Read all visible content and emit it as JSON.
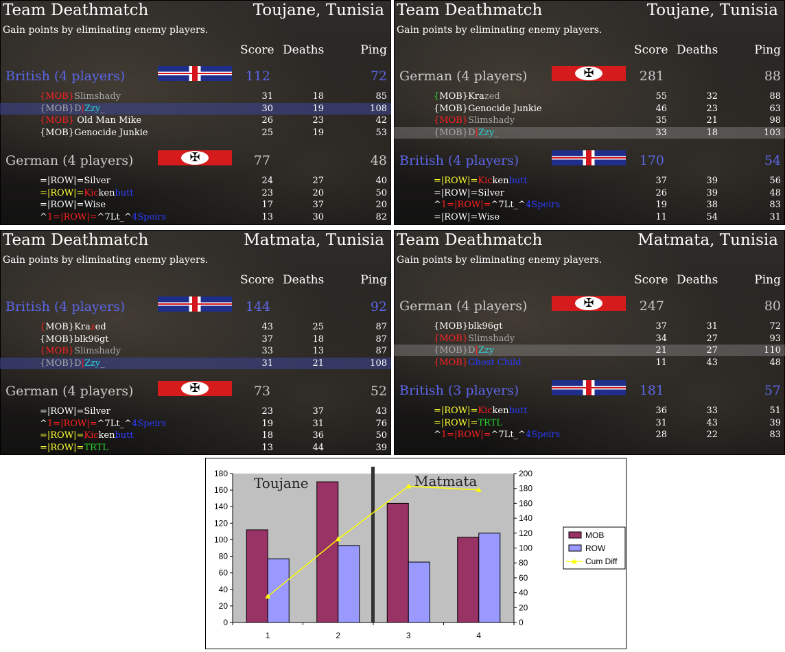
{
  "panels": [
    {
      "mode": "Team Deathmatch",
      "map": "Toujane, Tunisia",
      "description": "Gain points by eliminating enemy players.",
      "headers": {
        "score": "Score",
        "deaths": "Deaths",
        "ping": "Ping"
      },
      "teams": [
        {
          "name": "British (4 players)",
          "faction": "british",
          "score": "112",
          "ping": "72",
          "players": [
            {
              "segments": [
                {
                  "t": "{MOB}",
                  "c": "cr"
                },
                {
                  "t": "Slimshady",
                  "c": "cgr"
                }
              ],
              "score": "31",
              "deaths": "18",
              "ping": "85"
            },
            {
              "segments": [
                {
                  "t": "{MOB}D",
                  "c": "cgr"
                },
                {
                  "t": "|",
                  "c": "cr"
                },
                {
                  "t": "Zzy",
                  "c": "cc"
                },
                {
                  "t": "_",
                  "c": "cgr"
                }
              ],
              "score": "30",
              "deaths": "19",
              "ping": "108",
              "hl": "hl"
            },
            {
              "segments": [
                {
                  "t": "{MOB}",
                  "c": "cr"
                },
                {
                  "t": " Old Man Mike",
                  "c": "cw"
                }
              ],
              "score": "26",
              "deaths": "23",
              "ping": "42"
            },
            {
              "segments": [
                {
                  "t": "{MOB}Genocide Junkie",
                  "c": "cw"
                }
              ],
              "score": "25",
              "deaths": "19",
              "ping": "53"
            }
          ]
        },
        {
          "name": "German (4 players)",
          "faction": "german",
          "score": "77",
          "ping": "48",
          "players": [
            {
              "segments": [
                {
                  "t": "=|ROW|=Silver",
                  "c": "cw"
                }
              ],
              "score": "24",
              "deaths": "27",
              "ping": "40"
            },
            {
              "segments": [
                {
                  "t": "=|ROW|=",
                  "c": "cy"
                },
                {
                  "t": "Kic",
                  "c": "cr"
                },
                {
                  "t": "ken",
                  "c": "cw"
                },
                {
                  "t": "butt",
                  "c": "cb"
                }
              ],
              "score": "23",
              "deaths": "20",
              "ping": "50"
            },
            {
              "segments": [
                {
                  "t": "=|ROW|=Wise",
                  "c": "cw"
                }
              ],
              "score": "17",
              "deaths": "37",
              "ping": "20"
            },
            {
              "segments": [
                {
                  "t": "^",
                  "c": "cw"
                },
                {
                  "t": "1=|ROW|=",
                  "c": "cr"
                },
                {
                  "t": "^7Lt_^",
                  "c": "cw"
                },
                {
                  "t": "4Speirs",
                  "c": "cb"
                }
              ],
              "score": "13",
              "deaths": "30",
              "ping": "82"
            }
          ]
        }
      ]
    },
    {
      "mode": "Team Deathmatch",
      "map": "Toujane, Tunisia",
      "description": "Gain points by eliminating enemy players.",
      "headers": {
        "score": "Score",
        "deaths": "Deaths",
        "ping": "Ping"
      },
      "teams": [
        {
          "name": "German (4 players)",
          "faction": "german",
          "score": "281",
          "ping": "88",
          "players": [
            {
              "segments": [
                {
                  "t": "{",
                  "c": "cg"
                },
                {
                  "t": "MOB}",
                  "c": "cw"
                },
                {
                  "t": "Kra",
                  "c": "cw"
                },
                {
                  "t": "zed",
                  "c": "cgr"
                }
              ],
              "score": "55",
              "deaths": "32",
              "ping": "88"
            },
            {
              "segments": [
                {
                  "t": "{MOB}Genocide Junkie",
                  "c": "cw"
                }
              ],
              "score": "46",
              "deaths": "23",
              "ping": "63"
            },
            {
              "segments": [
                {
                  "t": "{MOB}",
                  "c": "cr"
                },
                {
                  "t": "Slimshady",
                  "c": "cgr"
                }
              ],
              "score": "35",
              "deaths": "21",
              "ping": "98"
            },
            {
              "segments": [
                {
                  "t": "{MOB}D",
                  "c": "cgr"
                },
                {
                  "t": "|",
                  "c": "cr"
                },
                {
                  "t": "Zzy",
                  "c": "cc"
                },
                {
                  "t": "_",
                  "c": "cgr"
                }
              ],
              "score": "33",
              "deaths": "18",
              "ping": "103",
              "hl": "hl2"
            }
          ]
        },
        {
          "name": "British (4 players)",
          "faction": "british",
          "score": "170",
          "ping": "54",
          "players": [
            {
              "segments": [
                {
                  "t": "=|ROW|=",
                  "c": "cy"
                },
                {
                  "t": "Kic",
                  "c": "cr"
                },
                {
                  "t": "ken",
                  "c": "cw"
                },
                {
                  "t": "butt",
                  "c": "cb"
                }
              ],
              "score": "37",
              "deaths": "39",
              "ping": "56"
            },
            {
              "segments": [
                {
                  "t": "=|ROW|=Silver",
                  "c": "cw"
                }
              ],
              "score": "26",
              "deaths": "39",
              "ping": "48"
            },
            {
              "segments": [
                {
                  "t": "^",
                  "c": "cw"
                },
                {
                  "t": "1=|ROW|=",
                  "c": "cr"
                },
                {
                  "t": "^7Lt_^",
                  "c": "cw"
                },
                {
                  "t": "4Speirs",
                  "c": "cb"
                }
              ],
              "score": "19",
              "deaths": "38",
              "ping": "83"
            },
            {
              "segments": [
                {
                  "t": "=|ROW|=Wise",
                  "c": "cw"
                }
              ],
              "score": "11",
              "deaths": "54",
              "ping": "31"
            }
          ]
        }
      ]
    },
    {
      "mode": "Team Deathmatch",
      "map": "Matmata, Tunisia",
      "description": "Gain points by eliminating enemy players.",
      "headers": {
        "score": "Score",
        "deaths": "Deaths",
        "ping": "Ping"
      },
      "teams": [
        {
          "name": "British (4 players)",
          "faction": "british",
          "score": "144",
          "ping": "92",
          "players": [
            {
              "segments": [
                {
                  "t": "{",
                  "c": "cr"
                },
                {
                  "t": "MOB}",
                  "c": "cw"
                },
                {
                  "t": "Kra",
                  "c": "cw"
                },
                {
                  "t": "z",
                  "c": "cr"
                },
                {
                  "t": "ed",
                  "c": "cw"
                }
              ],
              "score": "43",
              "deaths": "25",
              "ping": "87"
            },
            {
              "segments": [
                {
                  "t": "{MOB}blk96gt",
                  "c": "cw"
                }
              ],
              "score": "37",
              "deaths": "18",
              "ping": "87"
            },
            {
              "segments": [
                {
                  "t": "{MOB}",
                  "c": "cr"
                },
                {
                  "t": "Slimshady",
                  "c": "cgr"
                }
              ],
              "score": "33",
              "deaths": "13",
              "ping": "87"
            },
            {
              "segments": [
                {
                  "t": "{MOB}D",
                  "c": "cgr"
                },
                {
                  "t": "|",
                  "c": "cr"
                },
                {
                  "t": "Zzy",
                  "c": "cc"
                },
                {
                  "t": "_",
                  "c": "cgr"
                }
              ],
              "score": "31",
              "deaths": "21",
              "ping": "108",
              "hl": "hl"
            }
          ]
        },
        {
          "name": "German (4 players)",
          "faction": "german",
          "score": "73",
          "ping": "52",
          "players": [
            {
              "segments": [
                {
                  "t": "=|ROW|=Silver",
                  "c": "cw"
                }
              ],
              "score": "23",
              "deaths": "37",
              "ping": "43"
            },
            {
              "segments": [
                {
                  "t": "^",
                  "c": "cw"
                },
                {
                  "t": "1=|ROW|=",
                  "c": "cr"
                },
                {
                  "t": "^7Lt_^",
                  "c": "cw"
                },
                {
                  "t": "4Speirs",
                  "c": "cb"
                }
              ],
              "score": "19",
              "deaths": "31",
              "ping": "76"
            },
            {
              "segments": [
                {
                  "t": "=|ROW|=",
                  "c": "cy"
                },
                {
                  "t": "Kic",
                  "c": "cr"
                },
                {
                  "t": "ken",
                  "c": "cw"
                },
                {
                  "t": "butt",
                  "c": "cb"
                }
              ],
              "score": "18",
              "deaths": "36",
              "ping": "50"
            },
            {
              "segments": [
                {
                  "t": "=|ROW|=",
                  "c": "cy"
                },
                {
                  "t": "TRTL",
                  "c": "cg"
                }
              ],
              "score": "13",
              "deaths": "44",
              "ping": "39"
            }
          ]
        }
      ]
    },
    {
      "mode": "Team Deathmatch",
      "map": "Matmata, Tunisia",
      "description": "Gain points by eliminating enemy players.",
      "headers": {
        "score": "Score",
        "deaths": "Deaths",
        "ping": "Ping"
      },
      "teams": [
        {
          "name": "German (4 players)",
          "faction": "german",
          "score": "247",
          "ping": "80",
          "players": [
            {
              "segments": [
                {
                  "t": "{MOB}blk96gt",
                  "c": "cw"
                }
              ],
              "score": "37",
              "deaths": "31",
              "ping": "72"
            },
            {
              "segments": [
                {
                  "t": "{MOB}",
                  "c": "cr"
                },
                {
                  "t": "Slimshady",
                  "c": "cgr"
                }
              ],
              "score": "34",
              "deaths": "27",
              "ping": "93"
            },
            {
              "segments": [
                {
                  "t": "{MOB}D",
                  "c": "cgr"
                },
                {
                  "t": "|",
                  "c": "cr"
                },
                {
                  "t": "Zzy",
                  "c": "cc"
                }
              ],
              "score": "21",
              "deaths": "27",
              "ping": "110",
              "hl": "hl2"
            },
            {
              "segments": [
                {
                  "t": "{MOB}",
                  "c": "cr"
                },
                {
                  "t": "Ghost Child",
                  "c": "cb"
                }
              ],
              "score": "11",
              "deaths": "43",
              "ping": "48"
            }
          ]
        },
        {
          "name": "British (3 players)",
          "faction": "british",
          "score": "181",
          "ping": "57",
          "players": [
            {
              "segments": [
                {
                  "t": "=|ROW|=",
                  "c": "cy"
                },
                {
                  "t": "Kic",
                  "c": "cr"
                },
                {
                  "t": "ken",
                  "c": "cw"
                },
                {
                  "t": "butt",
                  "c": "cb"
                }
              ],
              "score": "36",
              "deaths": "33",
              "ping": "51"
            },
            {
              "segments": [
                {
                  "t": "=|ROW|=",
                  "c": "cy"
                },
                {
                  "t": "TRTL",
                  "c": "cg"
                }
              ],
              "score": "31",
              "deaths": "43",
              "ping": "39"
            },
            {
              "segments": [
                {
                  "t": "^",
                  "c": "cw"
                },
                {
                  "t": "1=|ROW|=",
                  "c": "cr"
                },
                {
                  "t": "^7Lt_^",
                  "c": "cw"
                },
                {
                  "t": "4Speirs",
                  "c": "cb"
                }
              ],
              "score": "28",
              "deaths": "22",
              "ping": "83"
            }
          ]
        }
      ]
    }
  ],
  "colors": {
    "cr": "#ff2020",
    "cw": "#ffffff",
    "cy": "#ffff33",
    "cb": "#2b3cff",
    "cg": "#2bd62b",
    "cc": "#2bd6d6",
    "cgr": "#aaaaaa",
    "british": "#5b66e6",
    "german": "#c8c8c8",
    "mob_bar": "#993366",
    "row_bar": "#9999ff",
    "cum_line": "#ffff00",
    "plot_bg": "#c0c0c0"
  },
  "chart_data": {
    "type": "bar",
    "categories": [
      "1",
      "2",
      "3",
      "4"
    ],
    "series": [
      {
        "name": "MOB",
        "values": [
          112,
          170,
          144,
          103
        ],
        "axis": "left"
      },
      {
        "name": "ROW",
        "values": [
          77,
          93,
          73,
          108
        ],
        "axis": "left"
      },
      {
        "name": "Cum Diff",
        "type": "line",
        "values": [
          35,
          112,
          183,
          178
        ],
        "axis": "right"
      }
    ],
    "ylim": [
      0,
      180
    ],
    "yticks": [
      0,
      20,
      40,
      60,
      80,
      100,
      120,
      140,
      160,
      180
    ],
    "y2lim": [
      0,
      200
    ],
    "y2ticks": [
      0,
      20,
      40,
      60,
      80,
      100,
      120,
      140,
      160,
      180,
      200
    ],
    "annotations": [
      "Toujane",
      "Matmata"
    ],
    "legend_position": "right",
    "grid": false
  }
}
